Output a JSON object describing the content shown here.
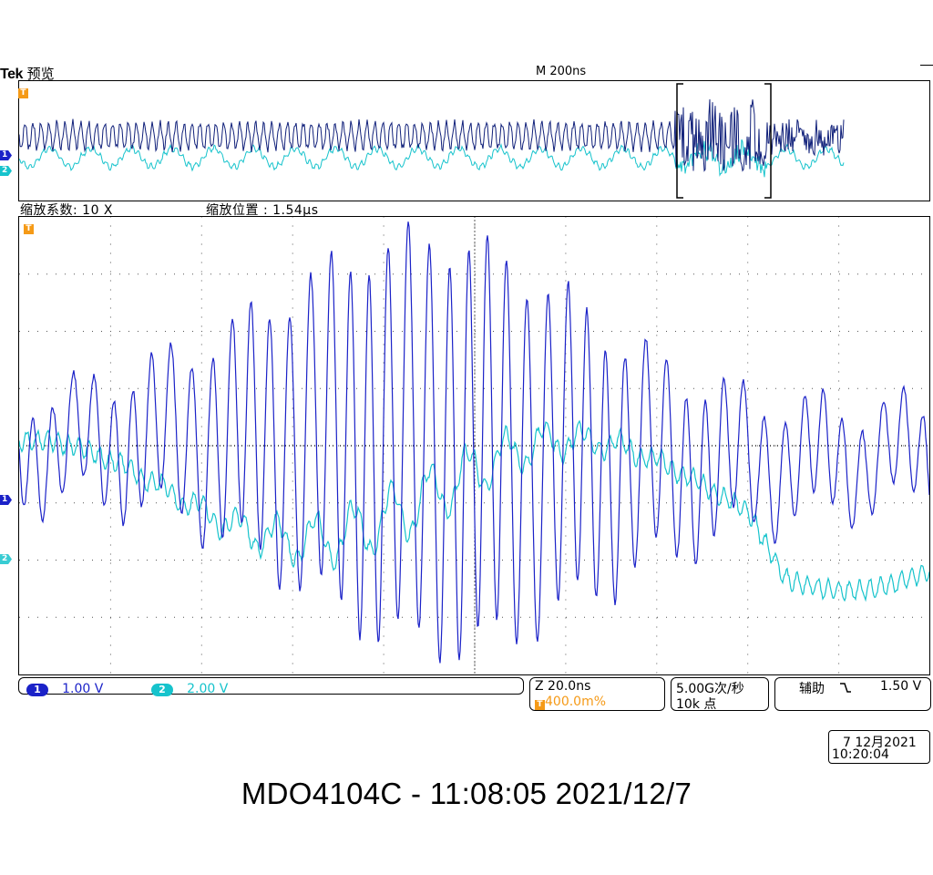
{
  "header": {
    "brand": "Tek",
    "mode": "预览",
    "timebase": "M 200ns"
  },
  "markers": {
    "trigger": "T",
    "ch1": "1",
    "ch2": "2"
  },
  "zoom": {
    "factor_label": "缩放系数: 10 X",
    "position_label": "缩放位置 :  1.54µs"
  },
  "channels": [
    {
      "id": "1",
      "scale": "1.00 V",
      "color": "#1b22c8"
    },
    {
      "id": "2",
      "scale": "2.00 V",
      "color": "#16c3cc"
    }
  ],
  "readouts": {
    "zoom_time": "Z 20.0ns",
    "trigger_level": "400.0m%",
    "sample_rate": "5.00G次/秒",
    "record_length": "10k 点",
    "aux_label": "辅助",
    "aux_slope_icon": "falling-edge-icon",
    "aux_value": "1.50 V"
  },
  "clock": {
    "date": "7 12月2021",
    "time": "10:20:04"
  },
  "footer": {
    "caption": "MDO4104C - 11:08:05   2021/12/7"
  },
  "colors": {
    "ch1": "#1b22c8",
    "ch1_overview": "#10207a",
    "ch2": "#16c3cc",
    "trigger": "#f59a17",
    "grid": "#555555"
  }
}
